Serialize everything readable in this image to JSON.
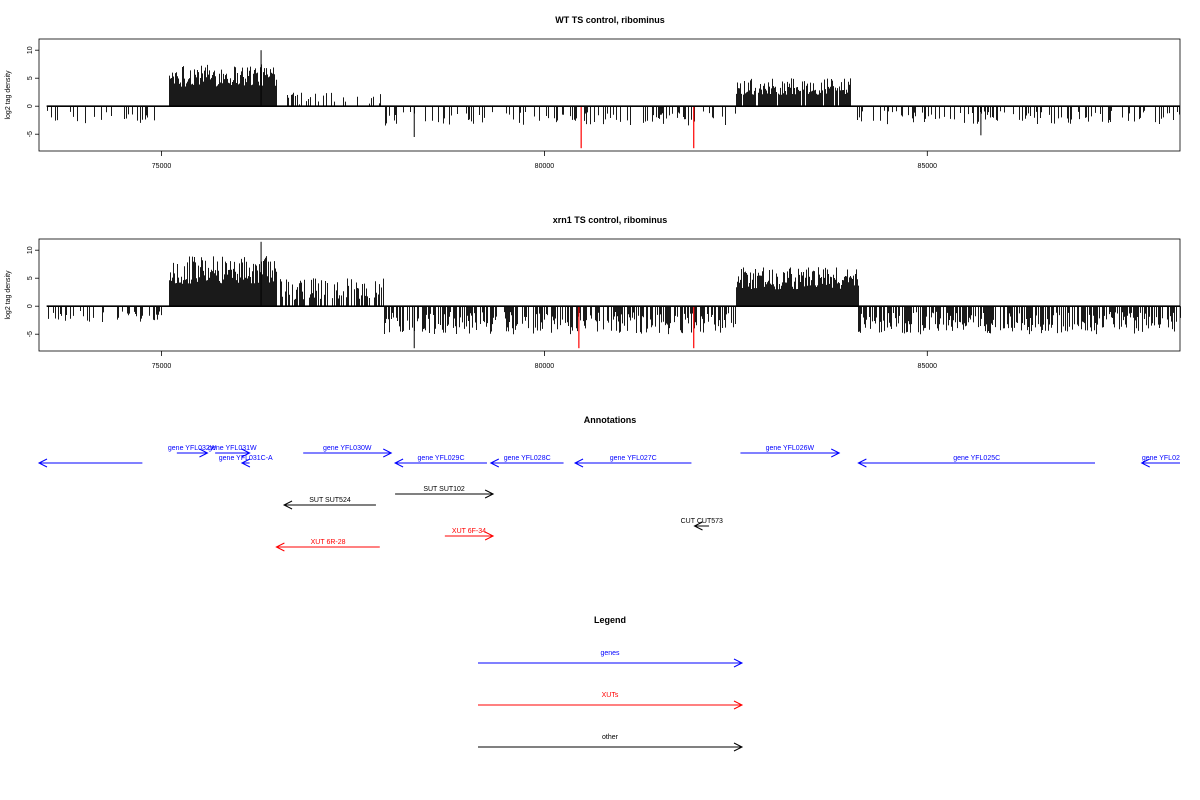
{
  "chart_data": [
    {
      "type": "bar",
      "title": "WT TS control, ribominus",
      "xlabel": "",
      "ylabel": "log2 tag density",
      "xlim": [
        73400,
        88300
      ],
      "ylim": [
        -8,
        12
      ],
      "yticks": [
        10,
        5,
        0,
        -5
      ],
      "xticks": [
        75000,
        80000,
        85000
      ],
      "xtick_labels": [
        "75000",
        "80000",
        "85000"
      ],
      "highlight_color": "#ff0000",
      "segments": [
        {
          "start": 73500,
          "end": 75000,
          "sign": -1,
          "min": 0.8,
          "max": 3.2,
          "density": 0.25
        },
        {
          "start": 75100,
          "end": 76500,
          "sign": 1,
          "min": 3.5,
          "max": 7.5,
          "density": 1.0
        },
        {
          "start": 76600,
          "end": 77900,
          "sign": 1,
          "min": 0.3,
          "max": 2.5,
          "density": 0.25
        },
        {
          "start": 77900,
          "end": 82500,
          "sign": -1,
          "min": 0.8,
          "max": 3.5,
          "density": 0.3
        },
        {
          "start": 82500,
          "end": 84000,
          "sign": 1,
          "min": 2.0,
          "max": 5.0,
          "density": 0.9
        },
        {
          "start": 84000,
          "end": 88300,
          "sign": -1,
          "min": 0.8,
          "max": 3.2,
          "density": 0.3
        }
      ],
      "peaks": [
        {
          "x": 76300,
          "y": 10
        },
        {
          "x": 78300,
          "y": -5.5
        },
        {
          "x": 85700,
          "y": -5.2
        }
      ],
      "highlights": [
        {
          "x": 80480,
          "y": -7.5
        },
        {
          "x": 81950,
          "y": -7.5
        }
      ]
    },
    {
      "type": "bar",
      "title": "xrn1 TS control, ribominus",
      "xlabel": "",
      "ylabel": "log2 tag density",
      "xlim": [
        73400,
        88300
      ],
      "ylim": [
        -8,
        12
      ],
      "yticks": [
        10,
        5,
        0,
        -5
      ],
      "xticks": [
        75000,
        80000,
        85000
      ],
      "xtick_labels": [
        "75000",
        "80000",
        "85000"
      ],
      "highlight_color": "#ff0000",
      "segments": [
        {
          "start": 73500,
          "end": 75000,
          "sign": -1,
          "min": 0.8,
          "max": 3.0,
          "density": 0.3
        },
        {
          "start": 75100,
          "end": 76500,
          "sign": 1,
          "min": 4.0,
          "max": 9.0,
          "density": 1.0
        },
        {
          "start": 76500,
          "end": 77900,
          "sign": 1,
          "min": 1.0,
          "max": 5.0,
          "density": 0.6
        },
        {
          "start": 77900,
          "end": 82500,
          "sign": -1,
          "min": 1.0,
          "max": 5.0,
          "density": 0.6
        },
        {
          "start": 82500,
          "end": 84100,
          "sign": 1,
          "min": 3.0,
          "max": 7.0,
          "density": 1.0
        },
        {
          "start": 84100,
          "end": 88300,
          "sign": -1,
          "min": 1.0,
          "max": 5.0,
          "density": 0.7
        }
      ],
      "peaks": [
        {
          "x": 76300,
          "y": 11.5
        },
        {
          "x": 78300,
          "y": -7.5
        }
      ],
      "highlights": [
        {
          "x": 80450,
          "y": -7.5
        },
        {
          "x": 81950,
          "y": -7.5
        }
      ]
    },
    {
      "type": "annotation-track",
      "title": "Annotations",
      "features": [
        {
          "label": "",
          "start": 73400,
          "end": 74750,
          "row": 1,
          "dir": "left",
          "color": "#0000ff"
        },
        {
          "label": "gene YFL032W",
          "start": 75200,
          "end": 75600,
          "row": 0,
          "dir": "right",
          "color": "#0000ff"
        },
        {
          "label": "gene YFL031W",
          "start": 75700,
          "end": 76150,
          "row": 0,
          "dir": "right",
          "color": "#0000ff"
        },
        {
          "label": "gene YFL031C-A",
          "start": 76050,
          "end": 76150,
          "row": 1,
          "dir": "left",
          "color": "#0000ff"
        },
        {
          "label": "gene YFL030W",
          "start": 76850,
          "end": 78000,
          "row": 0,
          "dir": "right",
          "color": "#0000ff"
        },
        {
          "label": "gene YFL029C",
          "start": 78050,
          "end": 79250,
          "row": 1,
          "dir": "left",
          "color": "#0000ff"
        },
        {
          "label": "gene YFL028C",
          "start": 79300,
          "end": 80250,
          "row": 1,
          "dir": "left",
          "color": "#0000ff"
        },
        {
          "label": "gene YFL027C",
          "start": 80400,
          "end": 81920,
          "row": 1,
          "dir": "left",
          "color": "#0000ff"
        },
        {
          "label": "gene YFL026W",
          "start": 82560,
          "end": 83850,
          "row": 0,
          "dir": "right",
          "color": "#0000ff"
        },
        {
          "label": "gene YFL025C",
          "start": 84100,
          "end": 87190,
          "row": 1,
          "dir": "left",
          "color": "#0000ff"
        },
        {
          "label": "gene YFL02",
          "start": 87800,
          "end": 88300,
          "row": 1,
          "dir": "left",
          "color": "#0000ff"
        },
        {
          "label": "SUT SUT524",
          "start": 76600,
          "end": 77800,
          "row": 2,
          "dir": "left",
          "color": "#000000"
        },
        {
          "label": "SUT SUT102",
          "start": 78050,
          "end": 79330,
          "row": 3,
          "dir": "right",
          "color": "#000000"
        },
        {
          "label": "CUT CUT573",
          "start": 81960,
          "end": 82150,
          "row": 4,
          "dir": "left",
          "color": "#000000"
        },
        {
          "label": "XUT 6R-28",
          "start": 76500,
          "end": 77850,
          "row": 5,
          "dir": "left",
          "color": "#ff0000"
        },
        {
          "label": "XUT 6F-34",
          "start": 78700,
          "end": 79330,
          "row": 6,
          "dir": "right",
          "color": "#ff0000"
        }
      ]
    },
    {
      "type": "legend",
      "title": "Legend",
      "entries": [
        {
          "label": "genes",
          "color": "#0000ff"
        },
        {
          "label": "XUTs",
          "color": "#ff0000"
        },
        {
          "label": "other",
          "color": "#000000"
        }
      ]
    }
  ]
}
